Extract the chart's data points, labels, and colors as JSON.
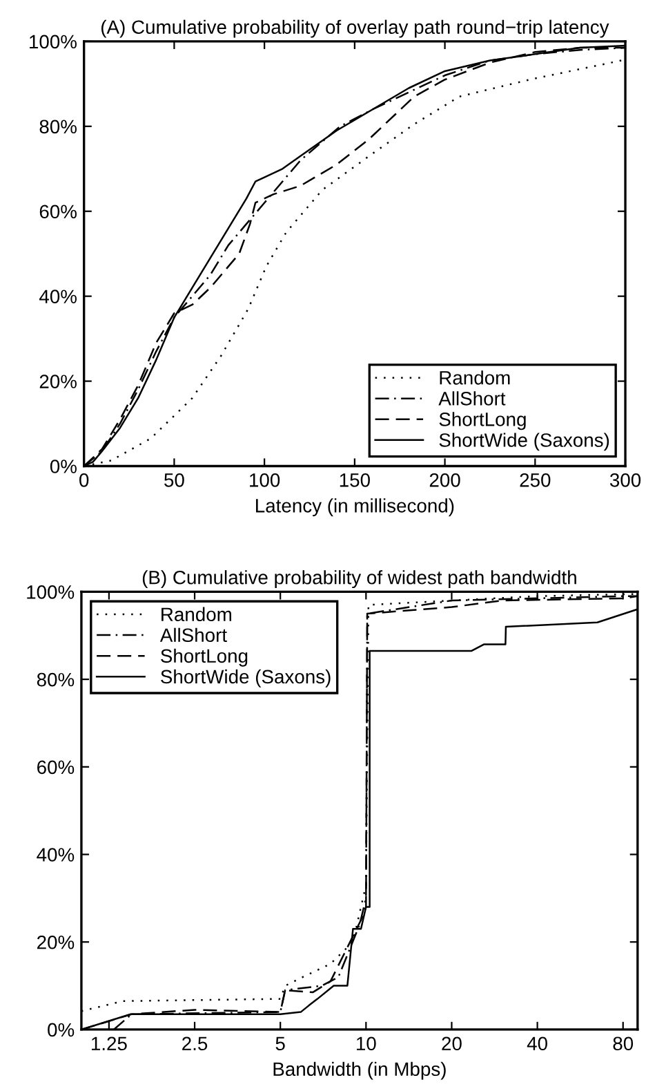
{
  "chart_data": [
    {
      "type": "line",
      "title": "(A) Cumulative probability of overlay path round−trip latency",
      "xlabel": "Latency (in millisecond)",
      "xlim": [
        0,
        300
      ],
      "xticks": [
        0,
        50,
        100,
        150,
        200,
        250,
        300
      ],
      "ylim": [
        0,
        100
      ],
      "yticks": [
        {
          "value": 0,
          "label": "0%"
        },
        {
          "value": 20,
          "label": "20%"
        },
        {
          "value": 40,
          "label": "40%"
        },
        {
          "value": 60,
          "label": "60%"
        },
        {
          "value": 80,
          "label": "80%"
        },
        {
          "value": 100,
          "label": "100%"
        }
      ],
      "grid": false,
      "legend": "bottom right",
      "marker": "none",
      "series": [
        {
          "name": "Random",
          "color": "#000000",
          "line_style": "dotted",
          "x": [
            0,
            15,
            37,
            60,
            76,
            91,
            101,
            112,
            132,
            158,
            183,
            208,
            247,
            300
          ],
          "values": [
            0,
            1.3,
            6.5,
            16,
            26,
            37,
            47,
            55,
            65,
            73,
            80.5,
            87,
            91,
            95.7
          ]
        },
        {
          "name": "AllShort",
          "color": "#000000",
          "line_style": "dashdot",
          "x": [
            0,
            10,
            20,
            30,
            40,
            50,
            60,
            70,
            80,
            90,
            100,
            110,
            120,
            142,
            160,
            180,
            200,
            225,
            250,
            275,
            300
          ],
          "values": [
            0,
            3.5,
            10,
            18,
            27,
            35,
            40,
            45,
            52,
            57,
            62,
            67,
            72,
            80,
            84,
            88,
            92,
            95.5,
            97,
            98,
            98.5
          ]
        },
        {
          "name": "ShortLong",
          "color": "#000000",
          "line_style": "dashed",
          "x": [
            0,
            10,
            20,
            30,
            40,
            50,
            55,
            60,
            70,
            80,
            86,
            92,
            95,
            105,
            120,
            140,
            158,
            183,
            200,
            225,
            250,
            275,
            300
          ],
          "values": [
            0,
            4,
            11,
            19,
            29,
            36,
            37,
            38,
            42,
            47,
            50,
            57,
            62,
            64,
            66,
            71,
            77,
            87,
            91,
            95,
            97.5,
            98.5,
            98.5
          ]
        },
        {
          "name": "ShortWide (Saxons)",
          "color": "#000000",
          "line_style": "solid",
          "x": [
            0,
            5,
            10,
            20,
            30,
            40,
            50,
            60,
            70,
            80,
            90,
            95,
            100,
            110,
            120,
            140,
            160,
            180,
            200,
            225,
            250,
            275,
            300
          ],
          "values": [
            0,
            1,
            3.5,
            9,
            16,
            25,
            35,
            42,
            49,
            56,
            63,
            67,
            68,
            70,
            73,
            79,
            84,
            89,
            93,
            95.5,
            97,
            98.5,
            99
          ]
        }
      ]
    },
    {
      "type": "line",
      "title": "(B) Cumulative probability of widest path bandwidth",
      "xlabel": "Bandwidth (in Mbps)",
      "log": "x",
      "xlim": [
        1,
        90
      ],
      "xticks": [
        1.25,
        2.5,
        5,
        10,
        20,
        40,
        80
      ],
      "ylim": [
        0,
        100
      ],
      "yticks": [
        {
          "value": 0,
          "label": "0%"
        },
        {
          "value": 20,
          "label": "20%"
        },
        {
          "value": 40,
          "label": "40%"
        },
        {
          "value": 60,
          "label": "60%"
        },
        {
          "value": 80,
          "label": "80%"
        },
        {
          "value": 100,
          "label": "100%"
        }
      ],
      "grid": false,
      "legend": "top left",
      "marker": "none",
      "series": [
        {
          "name": "Random",
          "color": "#000000",
          "line_style": "dotted",
          "x": [
            1,
            1.4,
            5,
            5.2,
            6,
            7.5,
            9,
            10,
            10.2,
            20,
            40,
            90
          ],
          "values": [
            4.2,
            6.5,
            7,
            10,
            12,
            15,
            20,
            33,
            97,
            98,
            99,
            99.5
          ]
        },
        {
          "name": "AllShort",
          "color": "#000000",
          "line_style": "dashdot",
          "x": [
            1.3,
            1.5,
            5,
            5.2,
            7,
            8,
            9.5,
            10,
            10.1,
            20,
            80,
            90
          ],
          "values": [
            0,
            3.5,
            4,
            9,
            10,
            12,
            24,
            30,
            95,
            98,
            99,
            99
          ]
        },
        {
          "name": "ShortLong",
          "color": "#000000",
          "line_style": "dashed",
          "x": [
            1,
            1.5,
            2.5,
            5,
            5.2,
            6.5,
            7.5,
            9.6,
            10,
            10.1,
            20,
            30,
            80,
            90
          ],
          "values": [
            0,
            3.5,
            4.5,
            4,
            9,
            8.5,
            11,
            25,
            28,
            95,
            96.5,
            98,
            98.5,
            99
          ]
        },
        {
          "name": "ShortWide (Saxons)",
          "color": "#000000",
          "line_style": "solid",
          "x": [
            1,
            1.49,
            5,
            5.9,
            6.3,
            6.75,
            7.7,
            8.6,
            9.0,
            9.6,
            10,
            10.3,
            10.3,
            23.5,
            26,
            30.9,
            31,
            65,
            90
          ],
          "values": [
            0,
            3.5,
            3.5,
            4,
            5.5,
            7,
            10,
            10,
            23,
            23,
            28,
            28,
            86.5,
            86.5,
            88,
            88,
            92,
            93,
            96
          ]
        }
      ]
    }
  ]
}
